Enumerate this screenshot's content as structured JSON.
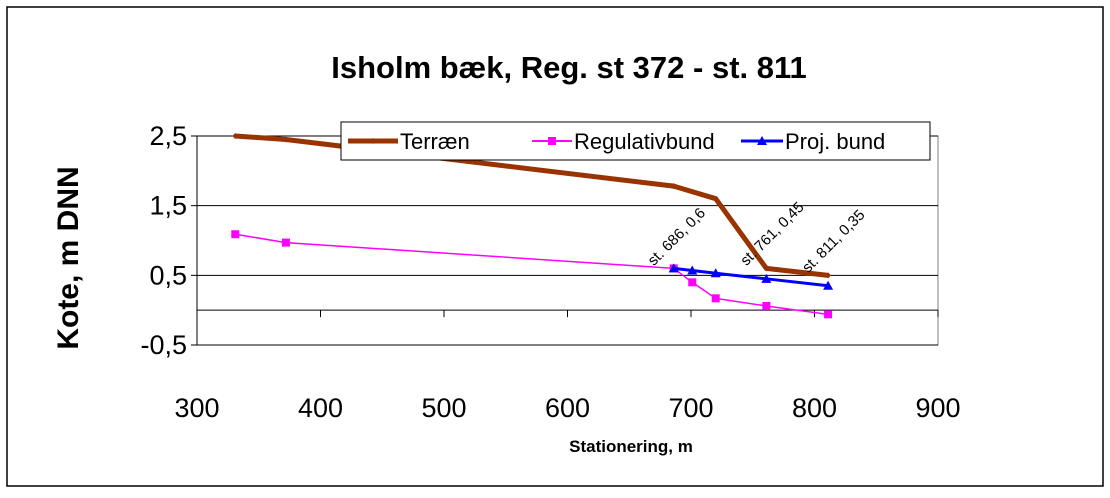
{
  "chart_data": {
    "type": "line",
    "title": "Isholm bæk, Reg. st 372 - st. 811",
    "xlabel": "Stationering, m",
    "ylabel": "Kote, m DNN",
    "xlim": [
      300,
      900
    ],
    "ylim": [
      -0.5,
      2.5
    ],
    "xticks": [
      300,
      400,
      500,
      600,
      700,
      800,
      900
    ],
    "yticks": [
      -0.5,
      0.5,
      1.5,
      2.5
    ],
    "ytick_labels": [
      "-0,5",
      "0,5",
      "1,5",
      "2,5"
    ],
    "grid": true,
    "legend_position": "top-right",
    "series": [
      {
        "name": "Terræn",
        "color": "#993300",
        "marker": "diamond",
        "x": [
          331,
          372,
          686,
          720,
          761,
          811
        ],
        "y": [
          2.5,
          2.45,
          1.78,
          1.6,
          0.6,
          0.5
        ]
      },
      {
        "name": "Regulativbund",
        "color": "#ff00ff",
        "marker": "square",
        "x": [
          331,
          372,
          686,
          701,
          720,
          761,
          811
        ],
        "y": [
          1.09,
          0.97,
          0.6,
          0.4,
          0.17,
          0.06,
          -0.06
        ]
      },
      {
        "name": "Proj. bund",
        "color": "#0000ff",
        "marker": "triangle",
        "x": [
          686,
          701,
          720,
          761,
          811
        ],
        "y": [
          0.6,
          0.57,
          0.53,
          0.45,
          0.35
        ]
      }
    ],
    "annotations": [
      {
        "text": "st. 686, 0,6",
        "x": 686,
        "y": 0.6
      },
      {
        "text": "st. 761, 0,45",
        "x": 761,
        "y": 0.6
      },
      {
        "text": "st. 811, 0,35",
        "x": 811,
        "y": 0.5
      }
    ]
  }
}
